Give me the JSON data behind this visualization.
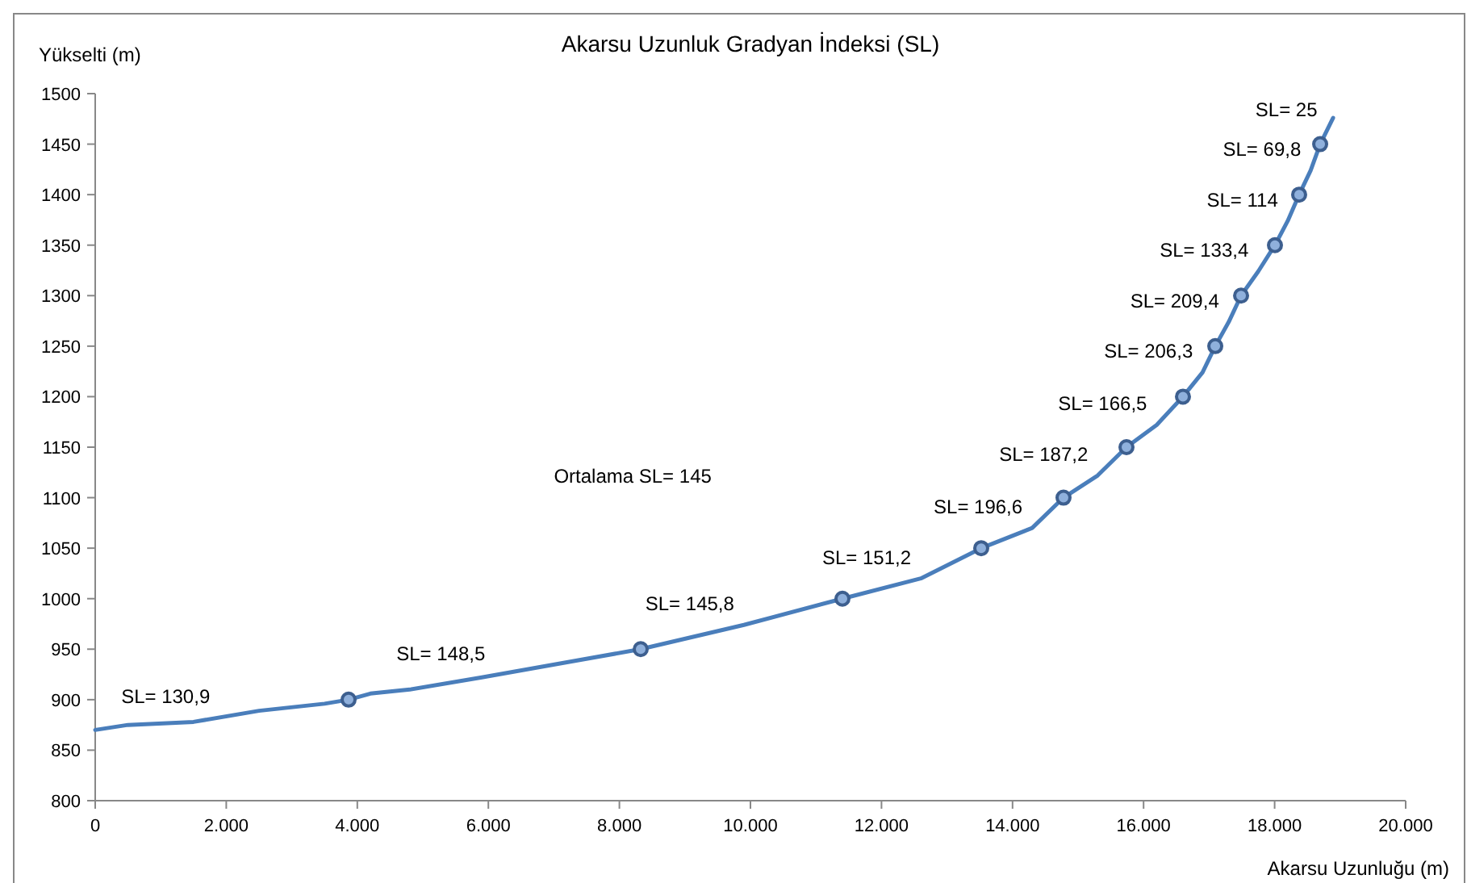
{
  "chart_data": {
    "type": "line",
    "title": "Akarsu Uzunluk Gradyan İndeksi (SL)",
    "xlabel": "Akarsu Uzunluğu (m)",
    "ylabel": "Yükselti (m)",
    "annotations": [
      "Ortalama SL= 145",
      {
        "text": "SL= 130,9",
        "x": 1900,
        "y": 882
      },
      {
        "text": "SL= 148,5",
        "x": 6100,
        "y": 925
      },
      {
        "text": "SL= 145,8",
        "x": 9900,
        "y": 974
      },
      {
        "text": "SL= 151,2",
        "x": 12600,
        "y": 1020
      },
      {
        "text": "SL= 196,6",
        "x": 14300,
        "y": 1070
      },
      {
        "text": "SL= 187,2",
        "x": 15300,
        "y": 1122
      },
      {
        "text": "SL= 166,5",
        "x": 16200,
        "y": 1172
      },
      {
        "text": "SL= 206,3",
        "x": 16900,
        "y": 1224
      },
      {
        "text": "SL= 209,4",
        "x": 17300,
        "y": 1274
      },
      {
        "text": "SL= 133,4",
        "x": 17750,
        "y": 1324
      },
      {
        "text": "SL= 114",
        "x": 18200,
        "y": 1374
      },
      {
        "text": "SL= 69,8",
        "x": 18550,
        "y": 1424
      },
      {
        "text": "SL= 25",
        "x": 18800,
        "y": 1463
      }
    ],
    "xlim": [
      0,
      20000
    ],
    "xticks": [
      0,
      {
        "value": 2000,
        "label": "2.000"
      },
      {
        "value": 4000,
        "label": "4.000"
      },
      {
        "value": 6000,
        "label": "6.000"
      },
      {
        "value": 8000,
        "label": "8.000"
      },
      {
        "value": 10000,
        "label": "10.000"
      },
      {
        "value": 12000,
        "label": "12.000"
      },
      {
        "value": 14000,
        "label": "14.000"
      },
      {
        "value": 16000,
        "label": "16.000"
      },
      {
        "value": 18000,
        "label": "18.000"
      },
      {
        "value": 20000,
        "label": "20.000"
      }
    ],
    "ylim": [
      800,
      1500
    ],
    "yticks": [
      800,
      850,
      900,
      950,
      1000,
      1050,
      1100,
      1150,
      1200,
      1250,
      1300,
      1350,
      1400,
      1450,
      1500
    ],
    "grid": false,
    "series": [
      {
        "color": "#4a7ebb",
        "marker": "none",
        "x": [
          0,
          500,
          1500,
          2500,
          3500,
          3867,
          4200,
          4800,
          5900,
          7200,
          8325,
          9900,
          11404,
          12600,
          13522,
          14300,
          14778,
          15300,
          15739,
          16200,
          16601,
          16900,
          17094,
          17300,
          17488,
          17750,
          18005,
          18200,
          18374,
          18550,
          18695,
          18892
        ],
        "values": [
          870,
          875,
          878,
          889,
          896,
          900,
          906,
          910,
          922,
          937,
          950,
          974,
          1000,
          1020,
          1050,
          1070,
          1100,
          1122,
          1150,
          1172,
          1200,
          1224,
          1250,
          1274,
          1300,
          1324,
          1350,
          1374,
          1400,
          1424,
          1450,
          1476
        ]
      },
      {
        "type": "scatter",
        "color": "#3d5f8f",
        "marker": "circle",
        "x": [
          3867,
          8325,
          11404,
          13522,
          14778,
          15739,
          16601,
          17094,
          17488,
          18005,
          18374,
          18695
        ],
        "values": [
          900,
          950,
          1000,
          1050,
          1100,
          1150,
          1200,
          1250,
          1300,
          1350,
          1400,
          1450
        ]
      }
    ]
  }
}
